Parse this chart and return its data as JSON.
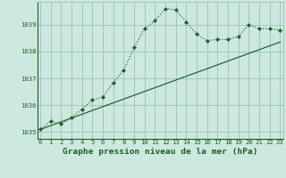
{
  "title": "Graphe pression niveau de la mer (hPa)",
  "bg_color": "#cde8df",
  "grid_color": "#9ec8b8",
  "line_color": "#1e5c28",
  "line1": {
    "x": [
      0,
      1,
      2,
      3,
      4,
      5,
      6,
      7,
      8,
      9,
      10,
      11,
      12,
      13,
      14,
      15,
      16,
      17,
      18,
      19,
      20,
      21,
      22,
      23
    ],
    "y": [
      1035.1,
      1035.4,
      1035.3,
      1035.55,
      1035.85,
      1036.2,
      1036.3,
      1036.85,
      1037.3,
      1038.15,
      1038.85,
      1039.15,
      1039.6,
      1039.55,
      1039.1,
      1038.65,
      1038.4,
      1038.45,
      1038.45,
      1038.55,
      1039.0,
      1038.85,
      1038.85,
      1038.8
    ]
  },
  "line2": {
    "x": [
      0,
      23
    ],
    "y": [
      1035.1,
      1038.35
    ]
  },
  "ylim": [
    1034.75,
    1039.85
  ],
  "xlim": [
    -0.3,
    23.3
  ],
  "yticks": [
    1035,
    1036,
    1037,
    1038,
    1039
  ],
  "xticks": [
    0,
    1,
    2,
    3,
    4,
    5,
    6,
    7,
    8,
    9,
    10,
    11,
    12,
    13,
    14,
    15,
    16,
    17,
    18,
    19,
    20,
    21,
    22,
    23
  ],
  "tick_fontsize": 5.2,
  "label_fontsize": 6.8
}
